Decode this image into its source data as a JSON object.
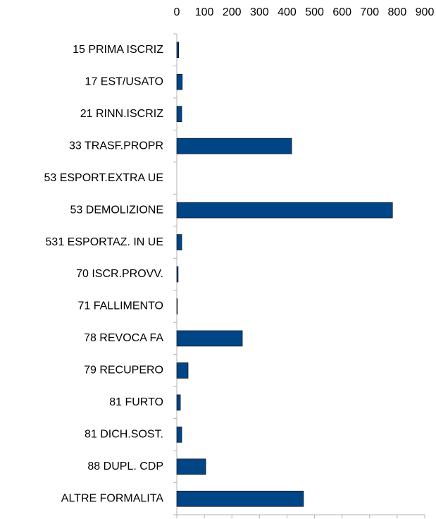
{
  "chart_data": {
    "type": "bar",
    "orientation": "horizontal",
    "categories": [
      "15 PRIMA ISCRIZ",
      "17 EST/USATO",
      "21 RINN.ISCRIZ",
      "33 TRASF.PROPR",
      "53 ESPORT.EXTRA UE",
      "53 DEMOLIZIONE",
      "531 ESPORTAZ. IN UE",
      "70 ISCR.PROVV.",
      "71 FALLIMENTO",
      "78 REVOCA FA",
      "79 RECUPERO",
      "81 FURTO",
      "81 DICH.SOST.",
      "88 DUPL. CDP",
      "ALTRE FORMALITA"
    ],
    "values": [
      7,
      20,
      18,
      417,
      0,
      783,
      18,
      5,
      2,
      238,
      41,
      13,
      18,
      105,
      460
    ],
    "color": "#004586",
    "xlim": [
      0,
      900
    ],
    "xticks": [
      0,
      100,
      200,
      300,
      400,
      500,
      600,
      700,
      800,
      900
    ],
    "grid": false
  }
}
